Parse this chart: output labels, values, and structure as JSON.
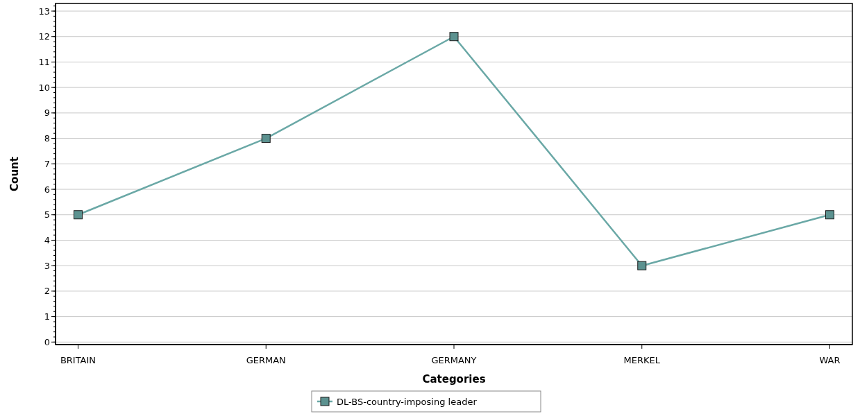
{
  "chart_data": {
    "type": "line",
    "xlabel": "Categories",
    "ylabel": "Count",
    "categories": [
      "BRITAIN",
      "GERMAN",
      "GERMANY",
      "MERKEL",
      "WAR"
    ],
    "series": [
      {
        "name": "DL-BS-country-imposing leader",
        "color": "#6aa8a6",
        "values": [
          5,
          8,
          12,
          3,
          5
        ]
      }
    ],
    "ylim": [
      -0.1,
      13.3
    ],
    "yticks": [
      0,
      1,
      2,
      3,
      4,
      5,
      6,
      7,
      8,
      9,
      10,
      11,
      12,
      13
    ],
    "grid": "y",
    "legend": "bottom",
    "marker": "square",
    "line_style": "solid"
  }
}
